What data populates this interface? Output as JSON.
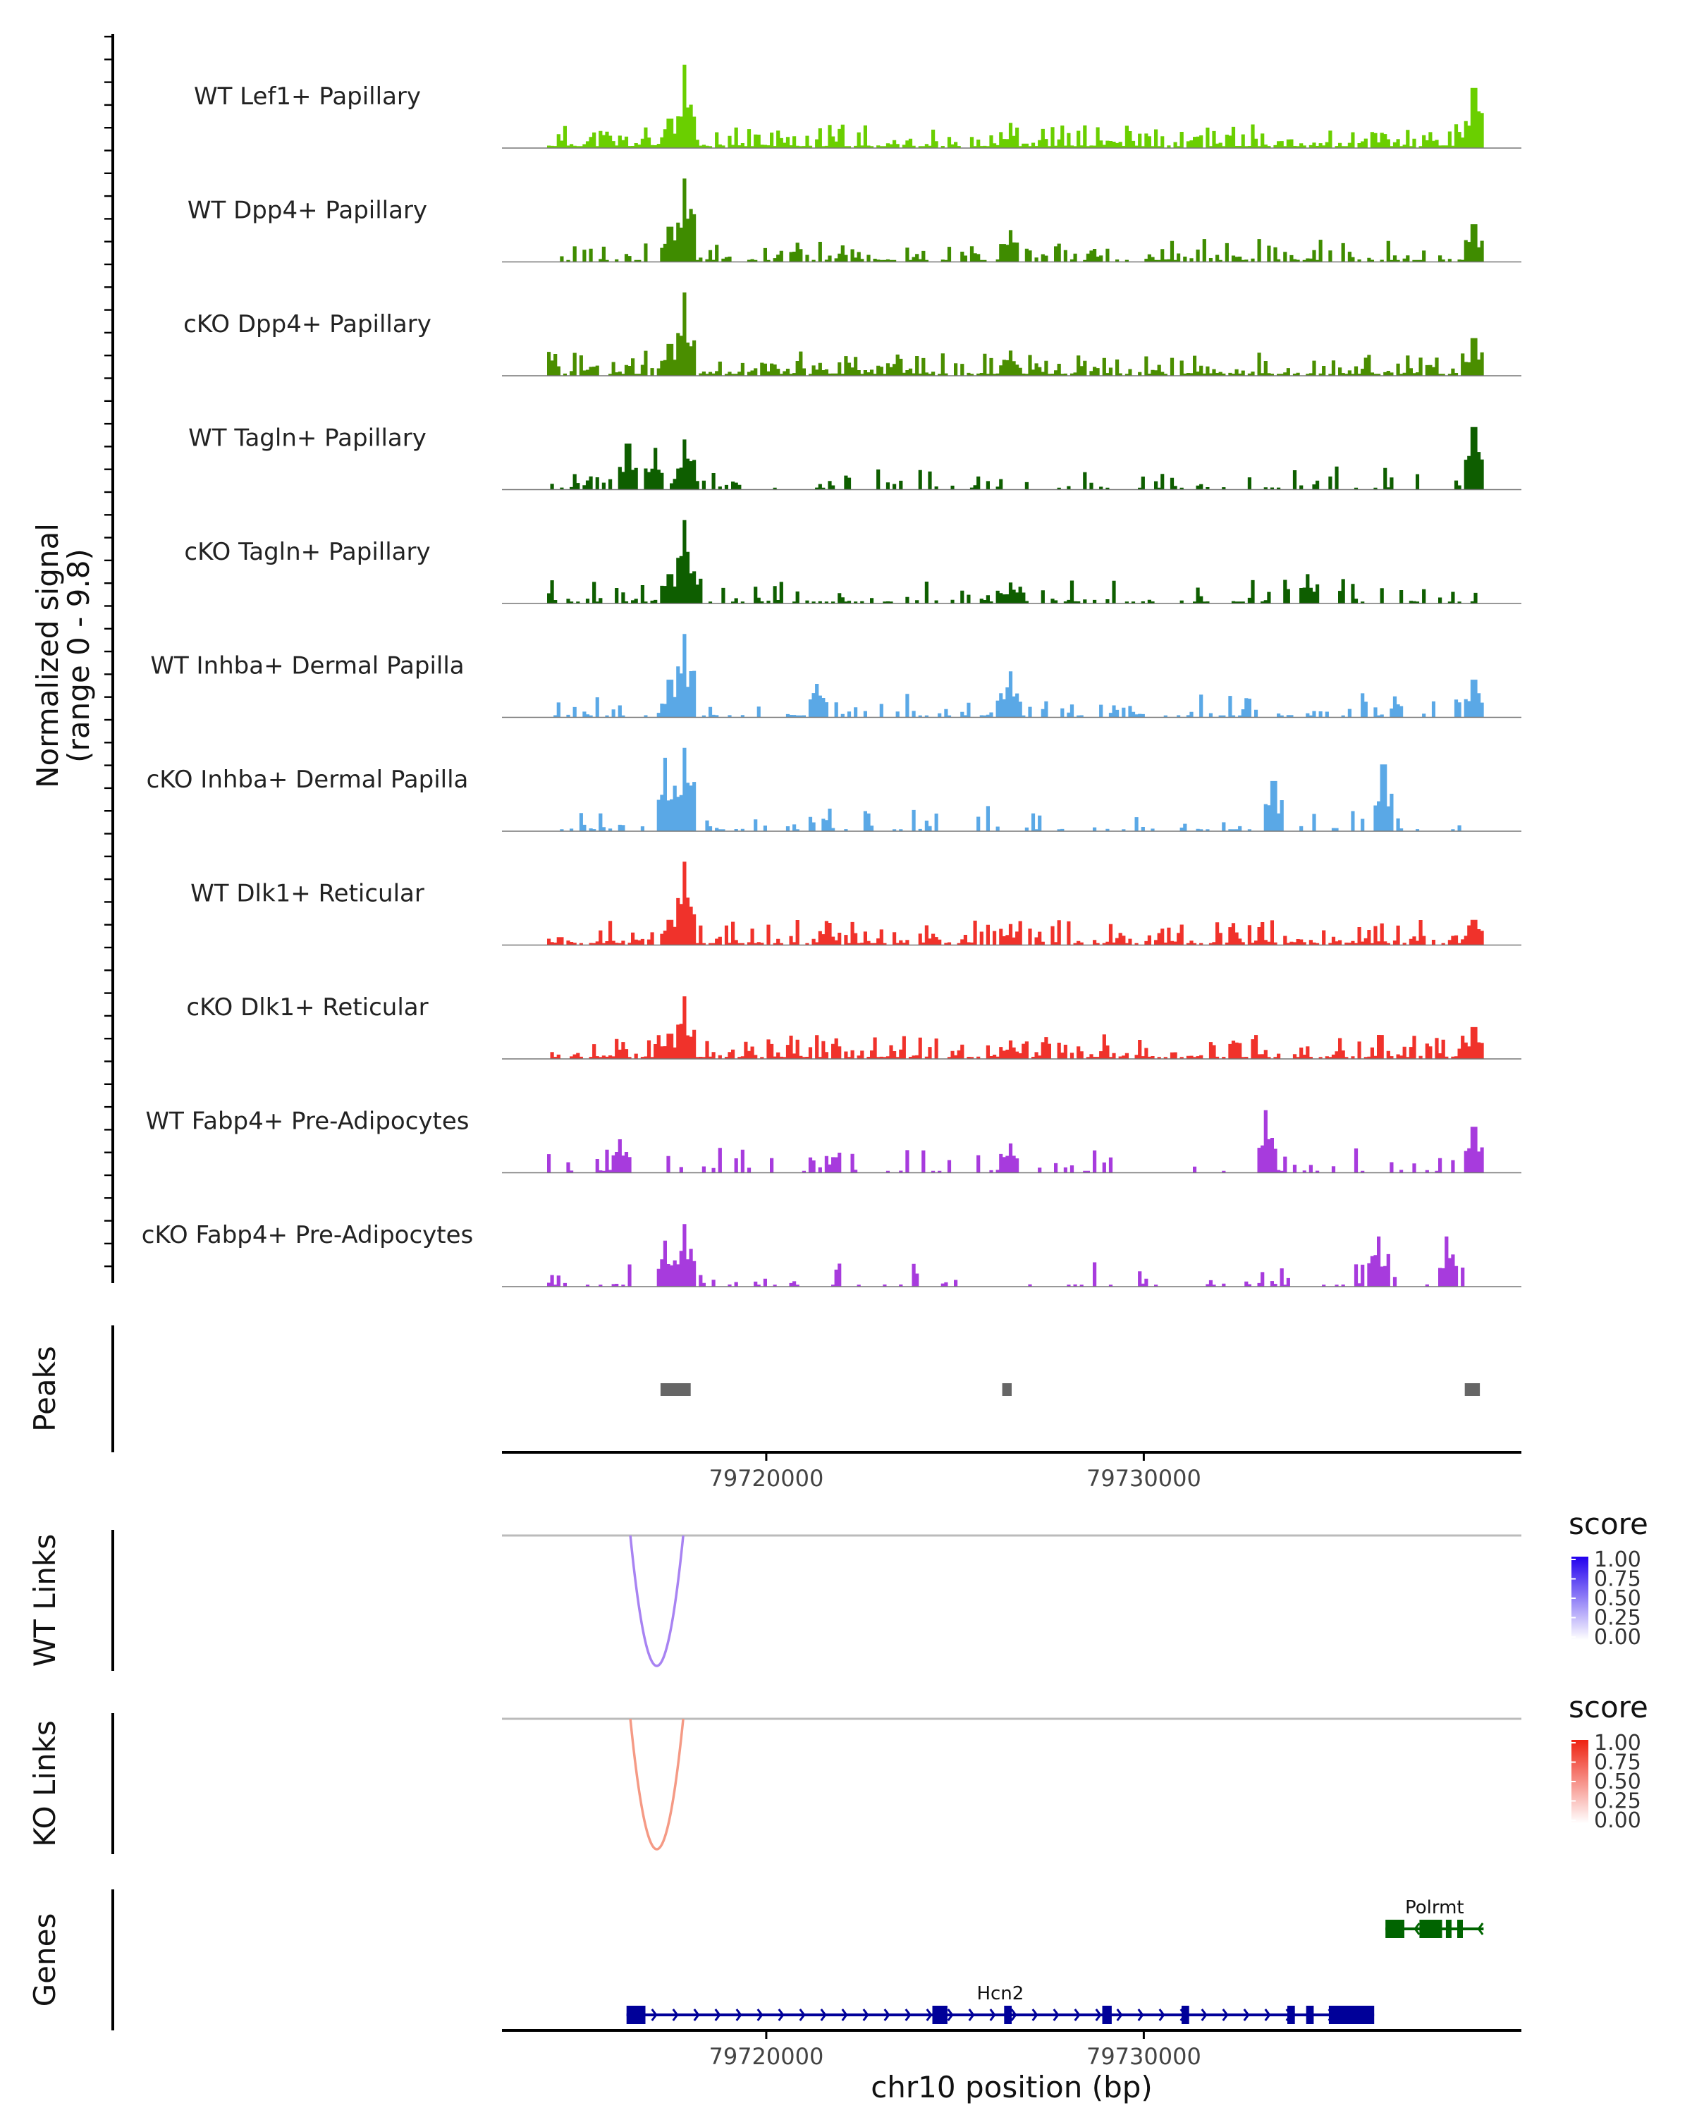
{
  "chart_data": {
    "type": "area",
    "title": "",
    "region": {
      "chrom": "chr10",
      "start": 79713000,
      "end": 79740000
    },
    "xlabel": "chr10 position (bp)",
    "x_ticks": [
      79720000,
      79730000
    ],
    "x_tick_labels": [
      "79720000",
      "79730000"
    ],
    "coverage_ylabel": [
      "Normalized signal",
      "(range 0 - 9.8)"
    ],
    "ylim": [
      0,
      9.8
    ],
    "series": [
      {
        "name": "WT Lef1+ Papillary",
        "color": "#6ACF00",
        "density": 0.92,
        "seed": 11,
        "peaks": [
          {
            "pos": 79717800,
            "h": 1.0
          },
          {
            "pos": 79717400,
            "h": 0.35
          },
          {
            "pos": 79726400,
            "h": 0.3
          },
          {
            "pos": 79738700,
            "h": 0.72
          }
        ]
      },
      {
        "name": "WT Dpp4+ Papillary",
        "color": "#3F8C00",
        "density": 0.55,
        "seed": 23,
        "peaks": [
          {
            "pos": 79717800,
            "h": 1.0
          },
          {
            "pos": 79717400,
            "h": 0.42
          },
          {
            "pos": 79726400,
            "h": 0.38
          },
          {
            "pos": 79738700,
            "h": 0.45
          }
        ]
      },
      {
        "name": "cKO Dpp4+ Papillary",
        "color": "#4A8E00",
        "density": 0.85,
        "seed": 37,
        "peaks": [
          {
            "pos": 79717800,
            "h": 1.0
          },
          {
            "pos": 79717400,
            "h": 0.38
          },
          {
            "pos": 79726400,
            "h": 0.3
          },
          {
            "pos": 79738700,
            "h": 0.45
          }
        ]
      },
      {
        "name": "WT Tagln+ Papillary",
        "color": "#0E5E00",
        "density": 0.35,
        "seed": 41,
        "peaks": [
          {
            "pos": 79717800,
            "h": 0.6
          },
          {
            "pos": 79716300,
            "h": 0.55
          },
          {
            "pos": 79717000,
            "h": 0.5
          },
          {
            "pos": 79738700,
            "h": 0.75
          }
        ]
      },
      {
        "name": "cKO Tagln+ Papillary",
        "color": "#0E5E00",
        "density": 0.45,
        "seed": 53,
        "peaks": [
          {
            "pos": 79717800,
            "h": 1.0
          },
          {
            "pos": 79717400,
            "h": 0.35
          },
          {
            "pos": 79726400,
            "h": 0.25
          },
          {
            "pos": 79734300,
            "h": 0.35
          }
        ]
      },
      {
        "name": "WT Inhba+ Dermal Papilla",
        "color": "#5AA8E6",
        "density": 0.4,
        "seed": 67,
        "peaks": [
          {
            "pos": 79717800,
            "h": 1.0
          },
          {
            "pos": 79717400,
            "h": 0.45
          },
          {
            "pos": 79721300,
            "h": 0.4
          },
          {
            "pos": 79726400,
            "h": 0.55
          },
          {
            "pos": 79738700,
            "h": 0.45
          }
        ]
      },
      {
        "name": "cKO Inhba+ Dermal Papilla",
        "color": "#5AA8E6",
        "density": 0.3,
        "seed": 79,
        "peaks": [
          {
            "pos": 79717800,
            "h": 1.0
          },
          {
            "pos": 79717300,
            "h": 0.88
          },
          {
            "pos": 79736300,
            "h": 0.8
          },
          {
            "pos": 79733400,
            "h": 0.6
          }
        ]
      },
      {
        "name": "WT Dlk1+ Reticular",
        "color": "#F0322B",
        "density": 0.75,
        "seed": 83,
        "peaks": [
          {
            "pos": 79717800,
            "h": 1.0
          },
          {
            "pos": 79717400,
            "h": 0.3
          },
          {
            "pos": 79726400,
            "h": 0.25
          },
          {
            "pos": 79738700,
            "h": 0.3
          }
        ]
      },
      {
        "name": "cKO Dlk1+ Reticular",
        "color": "#F0322B",
        "density": 0.75,
        "seed": 97,
        "peaks": [
          {
            "pos": 79717800,
            "h": 0.75
          },
          {
            "pos": 79717400,
            "h": 0.3
          },
          {
            "pos": 79726400,
            "h": 0.22
          },
          {
            "pos": 79738700,
            "h": 0.38
          }
        ]
      },
      {
        "name": "WT Fabp4+ Pre-Adipocytes",
        "color": "#A73BDD",
        "density": 0.22,
        "seed": 101,
        "peaks": [
          {
            "pos": 79733200,
            "h": 0.75
          },
          {
            "pos": 79716100,
            "h": 0.4
          },
          {
            "pos": 79738700,
            "h": 0.55
          },
          {
            "pos": 79726400,
            "h": 0.35
          }
        ]
      },
      {
        "name": "cKO Fabp4+ Pre-Adipocytes",
        "color": "#A73BDD",
        "density": 0.3,
        "seed": 113,
        "peaks": [
          {
            "pos": 79717800,
            "h": 0.75
          },
          {
            "pos": 79736200,
            "h": 0.6
          },
          {
            "pos": 79738000,
            "h": 0.6
          },
          {
            "pos": 79717300,
            "h": 0.55
          }
        ]
      }
    ],
    "peaks_track": {
      "label": "Peaks",
      "color": "#666666",
      "regions": [
        [
          79717200,
          79718000
        ],
        [
          79726250,
          79726500
        ],
        [
          79738500,
          79738900
        ]
      ]
    },
    "links": [
      {
        "label": "WT Links",
        "color": "#A883F2",
        "start": 79716400,
        "end": 79717800,
        "score": 0.6,
        "legend": {
          "title": "score",
          "ticks": [
            "1.00",
            "0.75",
            "0.50",
            "0.25",
            "0.00"
          ],
          "color_high": "#2200EE",
          "color_low": "#FFFFFF"
        }
      },
      {
        "label": "KO Links",
        "color": "#F59A85",
        "start": 79716400,
        "end": 79717800,
        "score": 0.5,
        "legend": {
          "title": "score",
          "ticks": [
            "1.00",
            "0.75",
            "0.50",
            "0.25",
            "0.00"
          ],
          "color_high": "#EE2211",
          "color_low": "#FFFFFF"
        }
      }
    ],
    "genes_track": {
      "label": "Genes",
      "genes": [
        {
          "name": "Hcn2",
          "strand": "+",
          "color": "#000099",
          "start": 79716300,
          "end": 79736100,
          "exons": [
            [
              79716300,
              79716800
            ],
            [
              79724400,
              79724800
            ],
            [
              79726300,
              79726500
            ],
            [
              79728900,
              79729150
            ],
            [
              79731000,
              79731200
            ],
            [
              79733800,
              79734000
            ],
            [
              79734300,
              79734500
            ],
            [
              79734900,
              79736100
            ]
          ]
        },
        {
          "name": "Polrmt",
          "strand": "-",
          "color": "#006400",
          "start": 79736400,
          "end": 79739000,
          "exons": [
            [
              79736400,
              79736900
            ],
            [
              79737300,
              79737900
            ],
            [
              79738000,
              79738150
            ],
            [
              79738300,
              79738450
            ]
          ]
        }
      ]
    }
  }
}
